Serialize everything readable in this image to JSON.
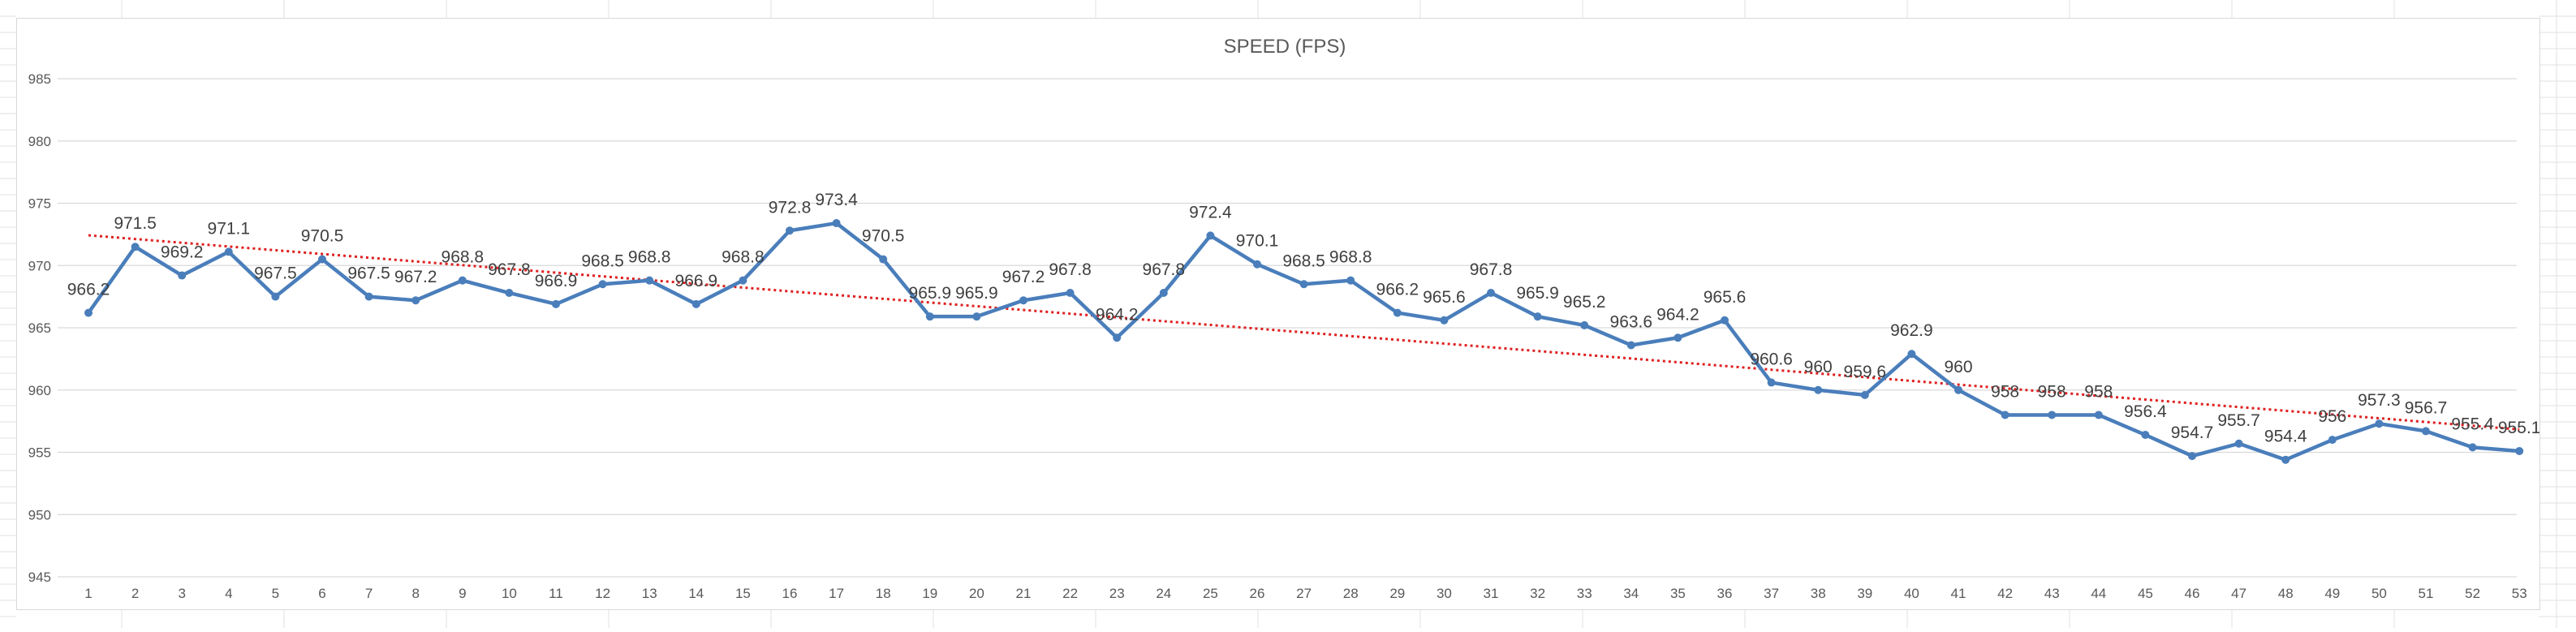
{
  "chart_data": {
    "type": "line",
    "title": "SPEED (FPS)",
    "xlabel": "",
    "ylabel": "",
    "categories": [
      1,
      2,
      3,
      4,
      5,
      6,
      7,
      8,
      9,
      10,
      11,
      12,
      13,
      14,
      15,
      16,
      17,
      18,
      19,
      20,
      21,
      22,
      23,
      24,
      25,
      26,
      27,
      28,
      29,
      30,
      31,
      32,
      33,
      34,
      35,
      36,
      37,
      38,
      39,
      40,
      41,
      42,
      43,
      44,
      45,
      46,
      47,
      48,
      49,
      50,
      51,
      52,
      53
    ],
    "series": [
      {
        "name": "",
        "color": "#4a7ebb",
        "values": [
          966.2,
          971.5,
          969.2,
          971.1,
          967.5,
          970.5,
          967.5,
          967.2,
          968.8,
          967.8,
          966.9,
          968.5,
          968.8,
          966.9,
          968.8,
          972.8,
          973.4,
          970.5,
          965.9,
          965.9,
          967.2,
          967.8,
          964.2,
          967.8,
          972.4,
          970.1,
          968.5,
          968.8,
          966.2,
          965.6,
          967.8,
          965.9,
          965.2,
          963.6,
          964.2,
          965.6,
          960.6,
          960,
          959.6,
          962.9,
          960,
          958,
          958,
          958,
          956.4,
          954.7,
          955.7,
          954.4,
          956,
          957.3,
          956.7,
          955.4,
          955.1
        ]
      }
    ],
    "trendline": {
      "type": "linear",
      "style": "dotted",
      "color": "#e02020"
    },
    "ylim": [
      945,
      985
    ],
    "yticks": [
      945,
      950,
      955,
      960,
      965,
      970,
      975,
      980,
      985
    ],
    "data_labels": true,
    "grid": "horizontal",
    "legend": "none"
  },
  "colors": {
    "line": "#4a7ebb",
    "trend": "#e02020",
    "grid": "#d9d9d9",
    "text": "#595959"
  }
}
